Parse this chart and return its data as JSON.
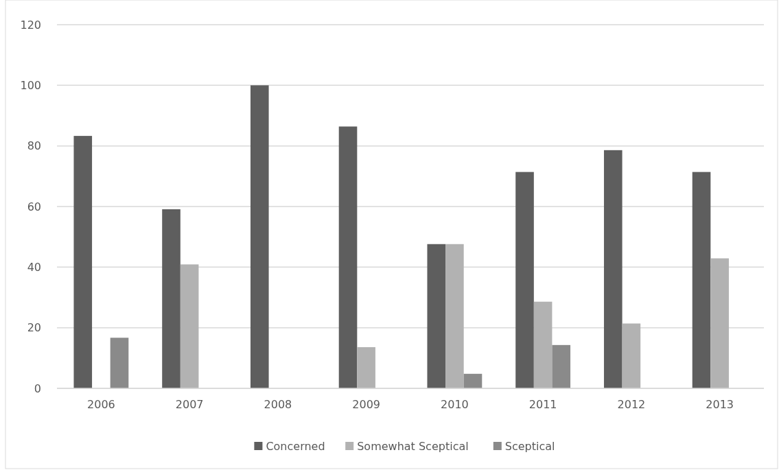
{
  "chart_data": {
    "type": "bar",
    "categories": [
      "2006",
      "2007",
      "2008",
      "2009",
      "2010",
      "2011",
      "2012",
      "2013"
    ],
    "series": [
      {
        "name": "Concerned",
        "color": "#5e5e5e",
        "values": [
          83.3,
          59.1,
          100,
          86.4,
          47.6,
          71.4,
          78.6,
          71.4
        ]
      },
      {
        "name": "Somewhat Sceptical",
        "color": "#b2b2b2",
        "values": [
          0,
          40.9,
          0,
          13.6,
          47.6,
          28.6,
          21.4,
          42.9
        ]
      },
      {
        "name": "Sceptical",
        "color": "#8a8a8a",
        "values": [
          16.7,
          0,
          0,
          0,
          4.8,
          14.3,
          0,
          0
        ]
      }
    ],
    "ylim": [
      0,
      120
    ],
    "yticks": [
      0,
      20,
      40,
      60,
      80,
      100,
      120
    ],
    "grid": "y",
    "legend": "bottom"
  }
}
